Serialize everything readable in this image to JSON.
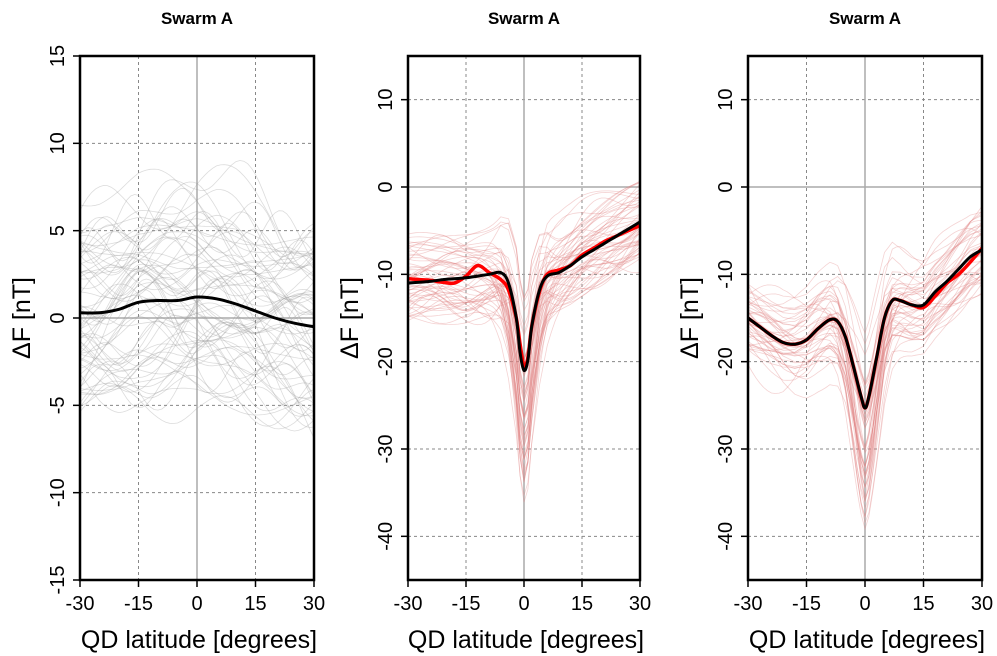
{
  "chart_data": [
    {
      "type": "line",
      "title": "Swarm A",
      "xlabel": "QD latitude [degrees]",
      "ylabel": "ΔF [nT]",
      "xlim": [
        -30,
        30
      ],
      "ylim": [
        -15,
        15
      ],
      "xticks": [
        "-30",
        "-15",
        "0",
        "15",
        "30"
      ],
      "yticks": [
        "-15",
        "-10",
        "-5",
        "0",
        "5",
        "10",
        "15"
      ],
      "grid": true,
      "x": [
        -30,
        -25,
        -20,
        -15,
        -10,
        -5,
        0,
        5,
        10,
        15,
        20,
        25,
        30
      ],
      "series": [
        {
          "color": "#000000",
          "width": 3,
          "values": [
            0.3,
            0.3,
            0.5,
            0.9,
            1.0,
            1.0,
            1.2,
            1.1,
            0.8,
            0.4,
            0.0,
            -0.3,
            -0.5
          ]
        }
      ],
      "background_traces": {
        "color": "#9a9a9a",
        "count": 70
      }
    },
    {
      "type": "line",
      "title": "Swarm A",
      "xlabel": "QD latitude [degrees]",
      "ylabel": "ΔF [nT]",
      "xlim": [
        -30,
        30
      ],
      "ylim": [
        -45,
        15
      ],
      "xticks": [
        "-30",
        "-15",
        "0",
        "15",
        "30"
      ],
      "yticks": [
        "-40",
        "-30",
        "-20",
        "-10",
        "0",
        "10"
      ],
      "grid": true,
      "x": [
        -30,
        -27,
        -24,
        -21,
        -18,
        -15,
        -12,
        -9,
        -6,
        -4,
        -2,
        -1,
        0,
        1,
        2,
        4,
        6,
        9,
        12,
        15,
        18,
        21,
        24,
        27,
        30
      ],
      "series": [
        {
          "color": "#ff0000",
          "width": 3.5,
          "values": [
            -10.5,
            -10.6,
            -10.7,
            -10.9,
            -11.0,
            -10.2,
            -9.0,
            -9.8,
            -10.6,
            -11.8,
            -15.0,
            -18.0,
            -20.5,
            -19.5,
            -16.0,
            -12.0,
            -10.0,
            -9.5,
            -9.0,
            -7.8,
            -7.0,
            -6.2,
            -5.6,
            -5.0,
            -4.4
          ]
        },
        {
          "color": "#000000",
          "width": 3,
          "values": [
            -11.0,
            -10.9,
            -10.8,
            -10.6,
            -10.5,
            -10.4,
            -10.2,
            -10.0,
            -9.8,
            -11.0,
            -15.0,
            -19.0,
            -21.0,
            -19.8,
            -16.0,
            -11.8,
            -10.2,
            -9.8,
            -9.0,
            -8.0,
            -7.2,
            -6.4,
            -5.6,
            -4.8,
            -4.0
          ]
        }
      ],
      "background_traces": {
        "color": "#e08080",
        "count": 55
      }
    },
    {
      "type": "line",
      "title": "Swarm A",
      "xlabel": "QD latitude [degrees]",
      "ylabel": "ΔF [nT]",
      "xlim": [
        -30,
        30
      ],
      "ylim": [
        -45,
        15
      ],
      "xticks": [
        "-30",
        "-15",
        "0",
        "15",
        "30"
      ],
      "yticks": [
        "-40",
        "-30",
        "-20",
        "-10",
        "0",
        "10"
      ],
      "grid": true,
      "x": [
        -30,
        -27,
        -24,
        -21,
        -18,
        -15,
        -12,
        -9,
        -7,
        -5,
        -3,
        -1,
        0,
        1,
        3,
        5,
        7,
        9,
        12,
        15,
        18,
        21,
        24,
        27,
        30
      ],
      "series": [
        {
          "color": "#ff0000",
          "width": 3.5,
          "values": [
            -15.0,
            -16.0,
            -17.0,
            -17.8,
            -18.0,
            -17.5,
            -16.2,
            -15.2,
            -15.4,
            -17.2,
            -20.5,
            -24.0,
            -25.3,
            -24.0,
            -19.5,
            -15.0,
            -13.0,
            -13.0,
            -13.5,
            -13.8,
            -12.5,
            -11.0,
            -10.0,
            -8.6,
            -7.0
          ]
        },
        {
          "color": "#000000",
          "width": 3,
          "values": [
            -15.0,
            -16.0,
            -17.0,
            -17.8,
            -18.0,
            -17.5,
            -16.2,
            -15.2,
            -15.4,
            -17.2,
            -20.5,
            -24.0,
            -25.3,
            -24.0,
            -19.5,
            -15.0,
            -13.0,
            -13.0,
            -13.5,
            -13.5,
            -12.0,
            -10.8,
            -9.4,
            -8.0,
            -7.2
          ]
        }
      ],
      "background_traces": {
        "color": "#e08080",
        "count": 45
      }
    }
  ]
}
